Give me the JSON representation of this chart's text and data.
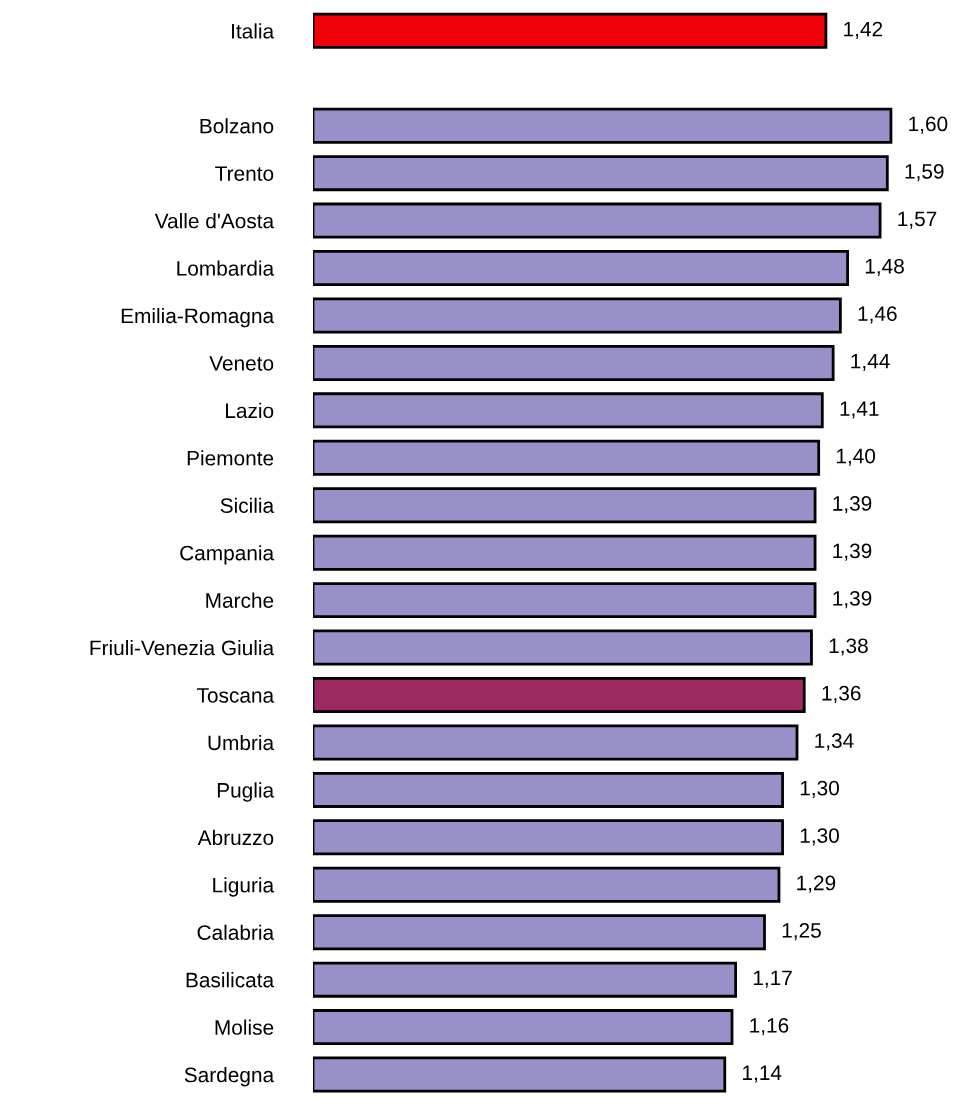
{
  "chart_data": {
    "type": "bar",
    "orientation": "horizontal",
    "categories": [
      "Italia",
      null,
      "Bolzano",
      "Trento",
      "Valle d'Aosta",
      "Lombardia",
      "Emilia-Romagna",
      "Veneto",
      "Lazio",
      "Piemonte",
      "Sicilia",
      "Campania",
      "Marche",
      "Friuli-Venezia Giulia",
      "Toscana",
      "Umbria",
      "Puglia",
      "Abruzzo",
      "Liguria",
      "Calabria",
      "Basilicata",
      "Molise",
      "Sardegna"
    ],
    "values": [
      1.42,
      null,
      1.6,
      1.59,
      1.57,
      1.48,
      1.46,
      1.44,
      1.41,
      1.4,
      1.39,
      1.39,
      1.39,
      1.38,
      1.36,
      1.34,
      1.3,
      1.3,
      1.29,
      1.25,
      1.17,
      1.16,
      1.14
    ],
    "value_labels": [
      "1,42",
      null,
      "1,60",
      "1,59",
      "1,57",
      "1,48",
      "1,46",
      "1,44",
      "1,41",
      "1,40",
      "1,39",
      "1,39",
      "1,39",
      "1,38",
      "1,36",
      "1,34",
      "1,30",
      "1,30",
      "1,29",
      "1,25",
      "1,17",
      "1,16",
      "1,14"
    ],
    "colors": [
      "#f00008",
      null,
      "#9890c8",
      "#9890c8",
      "#9890c8",
      "#9890c8",
      "#9890c8",
      "#9890c8",
      "#9890c8",
      "#9890c8",
      "#9890c8",
      "#9890c8",
      "#9890c8",
      "#9890c8",
      "#9c2a60",
      "#9890c8",
      "#9890c8",
      "#9890c8",
      "#9890c8",
      "#9890c8",
      "#9890c8",
      "#9890c8",
      "#9890c8"
    ],
    "grid": false,
    "legend": false
  }
}
